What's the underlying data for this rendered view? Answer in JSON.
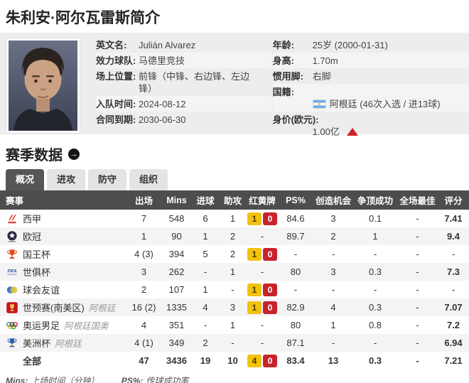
{
  "page": {
    "title": "朱利安·阿尔瓦雷斯简介"
  },
  "profile": {
    "left_fields": [
      {
        "label": "英文名:",
        "value": "Julián Alvarez"
      },
      {
        "label": "效力球队:",
        "value": "马德里竞技"
      },
      {
        "label": "场上位置:",
        "value": "前锋（中锋、右边锋、左边\n锋）"
      },
      {
        "label": "入队时间:",
        "value": "2024-08-12"
      },
      {
        "label": "合同到期:",
        "value": "2030-06-30"
      }
    ],
    "right_fields": [
      {
        "label": "年龄:",
        "value": "25岁 (2000-01-31)"
      },
      {
        "label": "身高:",
        "value": "1.70m"
      },
      {
        "label": "惯用脚:",
        "value": "右脚"
      },
      {
        "label": "国籍:",
        "value": "阿根廷 (46次入选 / 进13球)",
        "flag": "argentina-flag-icon"
      },
      {
        "label": "身价(欧元):",
        "value": "1.00亿",
        "trend": "up"
      }
    ]
  },
  "season": {
    "title": "赛季数据",
    "tabs": [
      {
        "label": "概况",
        "active": true
      },
      {
        "label": "进攻",
        "active": false
      },
      {
        "label": "防守",
        "active": false
      },
      {
        "label": "组织",
        "active": false
      }
    ]
  },
  "stats": {
    "headers": [
      "赛事",
      "出场",
      "Mins",
      "进球",
      "助攻",
      "红黄牌",
      "PS%",
      "创造机会",
      "争顶成功",
      "全场最佳",
      "评分"
    ],
    "rows": [
      {
        "icon": "laliga-icon",
        "competition": "西甲",
        "team": "",
        "apps": "7",
        "mins": "548",
        "goals": "6",
        "assists": "1",
        "yellow": "1",
        "red": "0",
        "ps": "84.6",
        "chances": "3",
        "aerial": "0.1",
        "motm": "-",
        "rating": "7.41",
        "total": false
      },
      {
        "icon": "champions-league-icon",
        "competition": "欧冠",
        "team": "",
        "apps": "1",
        "mins": "90",
        "goals": "1",
        "assists": "2",
        "yellow": null,
        "red": null,
        "ps": "89.7",
        "chances": "2",
        "aerial": "1",
        "motm": "-",
        "rating": "9.4",
        "total": false
      },
      {
        "icon": "copa-del-rey-icon",
        "competition": "国王杯",
        "team": "",
        "apps": "4 (3)",
        "mins": "394",
        "goals": "5",
        "assists": "2",
        "yellow": "1",
        "red": "0",
        "ps": "-",
        "chances": "-",
        "aerial": "-",
        "motm": "-",
        "rating": "-",
        "total": false
      },
      {
        "icon": "club-world-cup-icon",
        "competition": "世俱杯",
        "team": "",
        "apps": "3",
        "mins": "262",
        "goals": "-",
        "assists": "1",
        "yellow": null,
        "red": null,
        "ps": "80",
        "chances": "3",
        "aerial": "0.3",
        "motm": "-",
        "rating": "7.3",
        "total": false
      },
      {
        "icon": "club-friendly-icon",
        "competition": "球会友谊",
        "team": "",
        "apps": "2",
        "mins": "107",
        "goals": "1",
        "assists": "-",
        "yellow": "1",
        "red": "0",
        "ps": "-",
        "chances": "-",
        "aerial": "-",
        "motm": "-",
        "rating": "-",
        "total": false
      },
      {
        "icon": "world-cup-qualifiers-icon",
        "competition": "世预赛(南美区)",
        "team": "阿根廷",
        "apps": "16 (2)",
        "mins": "1335",
        "goals": "4",
        "assists": "3",
        "yellow": "1",
        "red": "0",
        "ps": "82.9",
        "chances": "4",
        "aerial": "0.3",
        "motm": "-",
        "rating": "7.07",
        "total": false
      },
      {
        "icon": "olympics-icon",
        "competition": "奥运男足",
        "team": "阿根廷国奥",
        "apps": "4",
        "mins": "351",
        "goals": "-",
        "assists": "1",
        "yellow": null,
        "red": null,
        "ps": "80",
        "chances": "1",
        "aerial": "0.8",
        "motm": "-",
        "rating": "7.2",
        "total": false
      },
      {
        "icon": "copa-america-icon",
        "competition": "美洲杯",
        "team": "阿根廷",
        "apps": "4 (1)",
        "mins": "349",
        "goals": "2",
        "assists": "-",
        "yellow": null,
        "red": null,
        "ps": "87.1",
        "chances": "-",
        "aerial": "-",
        "motm": "-",
        "rating": "6.94",
        "total": false
      },
      {
        "icon": "",
        "competition": "全部",
        "team": "",
        "apps": "47",
        "mins": "3436",
        "goals": "19",
        "assists": "10",
        "yellow": "4",
        "red": "0",
        "ps": "83.4",
        "chances": "13",
        "aerial": "0.3",
        "motm": "-",
        "rating": "7.21",
        "total": true
      }
    ],
    "footnotes": [
      {
        "abbr": "Mins:",
        "text": "上场时间（分钟）"
      },
      {
        "abbr": "PS%:",
        "text": "传球成功率"
      }
    ]
  },
  "colors": {
    "accent_rating": "#d9531e",
    "yellow_card": "#f2c20f",
    "red_card": "#c8232c",
    "header_bg": "#4d4d4d",
    "panel_bg": "#ededed",
    "tab_active_bg": "#565656",
    "alt_row_bg": "#f4f4f4",
    "value_up_arrow": "#cc2028"
  }
}
